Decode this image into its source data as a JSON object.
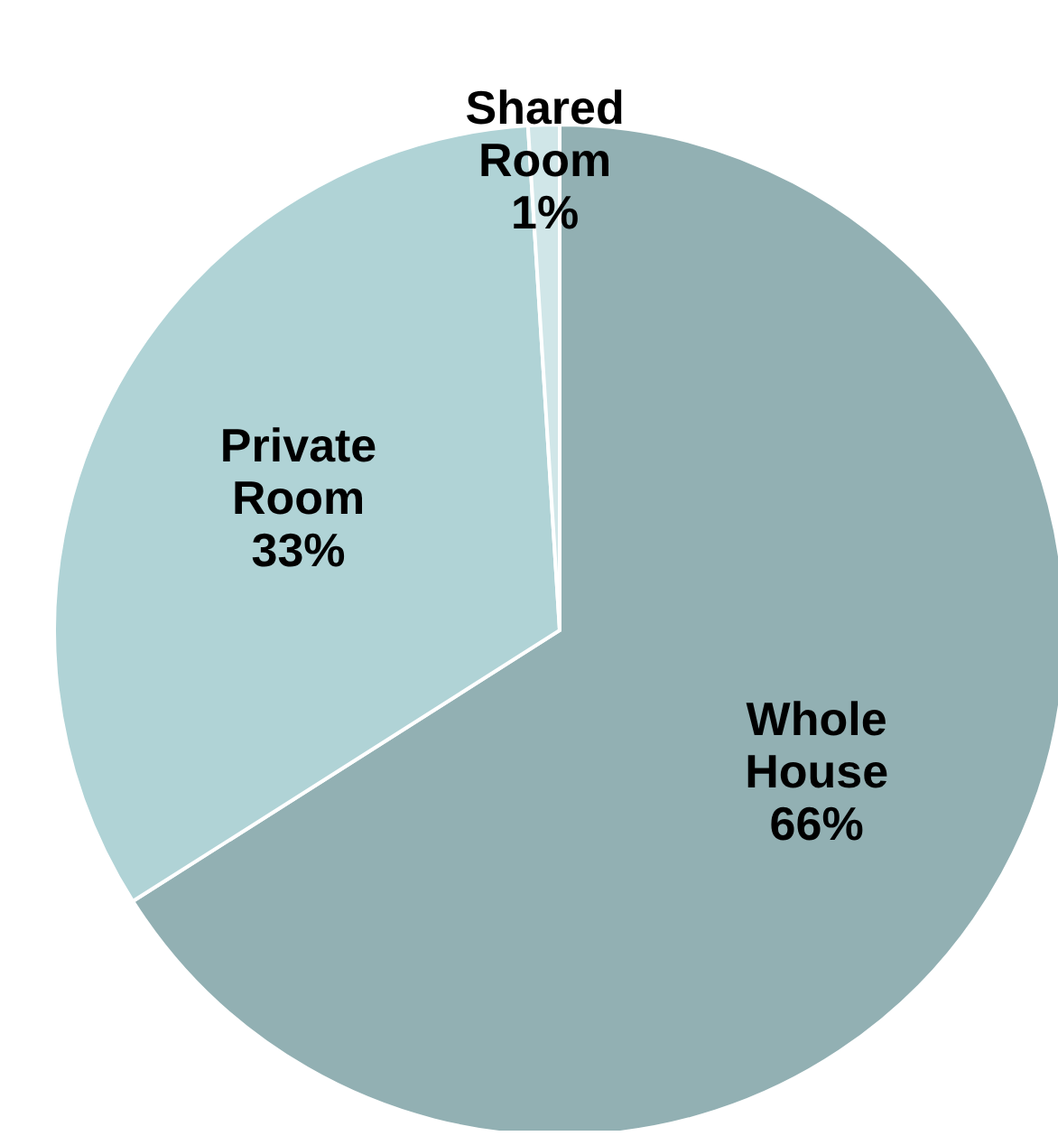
{
  "chart_data": {
    "type": "pie",
    "categories": [
      "Whole House",
      "Private Room",
      "Shared Room"
    ],
    "values": [
      66,
      33,
      1
    ],
    "colors": [
      "#92b0b3",
      "#b0d3d6",
      "#d0e6e8"
    ],
    "value_labels": [
      "66%",
      "33%",
      "1%"
    ]
  }
}
